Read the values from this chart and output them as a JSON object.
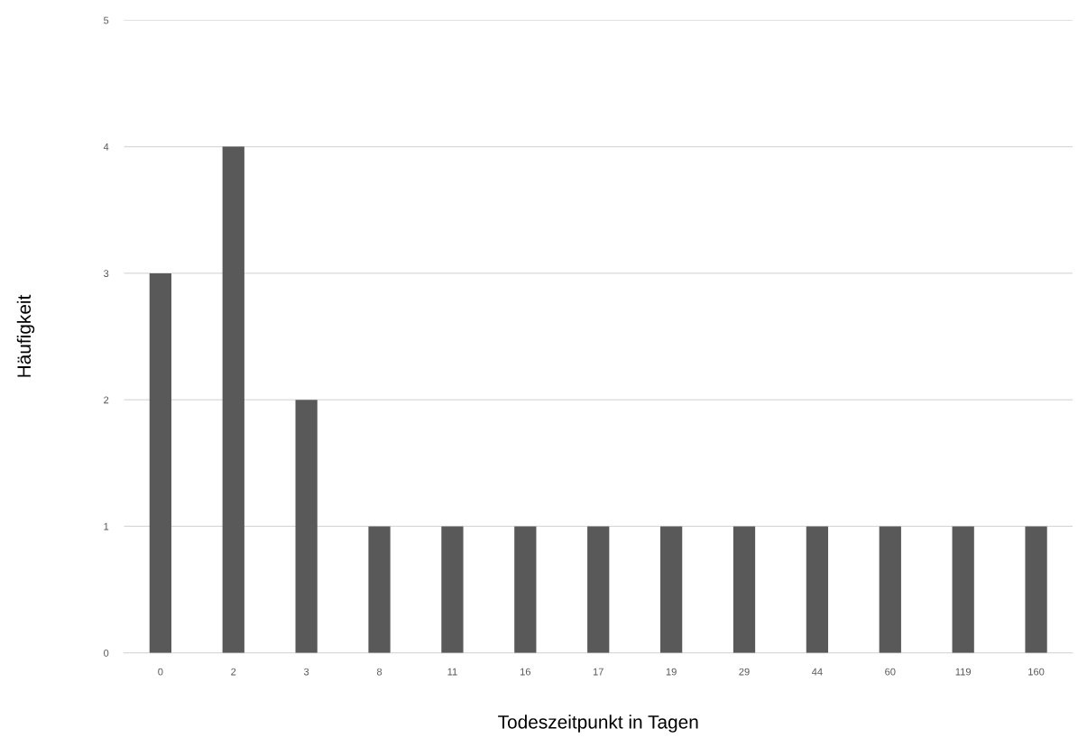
{
  "chart_data": {
    "type": "bar",
    "xlabel": "Todeszeitpunkt in Tagen",
    "ylabel": "Häufigkeit",
    "categories": [
      "0",
      "2",
      "3",
      "8",
      "11",
      "16",
      "17",
      "19",
      "29",
      "44",
      "60",
      "119",
      "160"
    ],
    "values": [
      3,
      4,
      2,
      1,
      1,
      1,
      1,
      1,
      1,
      1,
      1,
      1,
      1
    ],
    "color": "#595959",
    "ylim": [
      0,
      5
    ],
    "yticks": [
      0,
      1,
      2,
      3,
      4,
      5
    ],
    "grid": "y",
    "legend": false
  }
}
